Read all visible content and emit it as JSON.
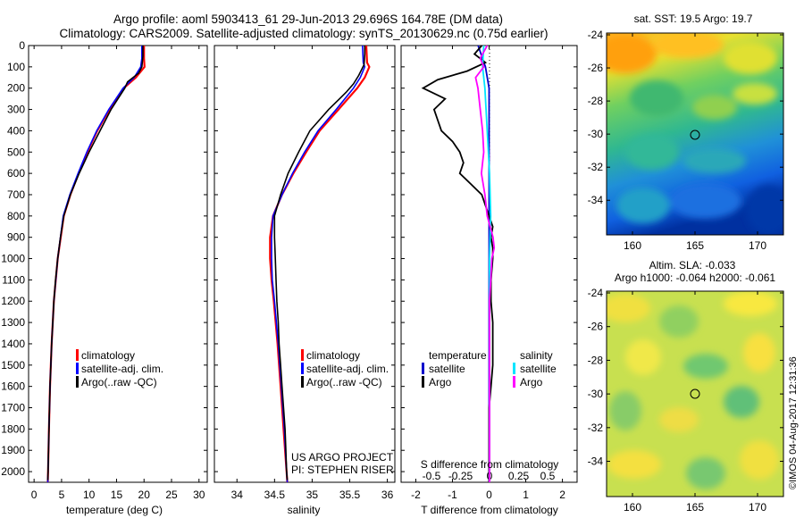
{
  "header": {
    "line1": "Argo profile: aoml 5903413_61 29-Jun-2013 29.696S 164.78E (DM data)",
    "line2": "Climatology: CARS2009. Satellite-adjusted climatology: synTS_20130629.nc (0.75d earlier)"
  },
  "colors": {
    "climatology": "#ff0000",
    "satellite": "#0000ff",
    "argo": "#000000",
    "sat_temp_diff": "#0000cc",
    "sat_sal_diff": "#00e5ff",
    "argo_sal_diff": "#ff00ff"
  },
  "chart_data": [
    {
      "type": "line",
      "panel": "temperature",
      "xlabel": "temperature (deg C)",
      "ylim": [
        2050,
        0
      ],
      "xlim": [
        -1,
        31.5
      ],
      "yticks": [
        0,
        100,
        200,
        300,
        400,
        500,
        600,
        700,
        800,
        900,
        1000,
        1100,
        1200,
        1300,
        1400,
        1500,
        1600,
        1700,
        1800,
        1900,
        2000
      ],
      "xticks": [
        0,
        5,
        10,
        15,
        20,
        25,
        30
      ],
      "legend": [
        "climatology",
        "satellite-adj. clim.",
        "Argo(..raw -QC)"
      ],
      "series": [
        {
          "name": "climatology",
          "depth": [
            0,
            60,
            100,
            150,
            200,
            300,
            400,
            500,
            600,
            700,
            800,
            1000,
            1200,
            1400,
            1600,
            1800,
            2000,
            2050
          ],
          "values": [
            20.0,
            20.0,
            20.1,
            18.5,
            16.3,
            13.7,
            11.5,
            9.7,
            8.1,
            6.6,
            5.4,
            4.3,
            3.6,
            3.2,
            2.9,
            2.7,
            2.55,
            2.5
          ]
        },
        {
          "name": "satellite-adj. clim.",
          "depth": [
            0,
            60,
            100,
            150,
            200,
            300,
            400,
            500,
            600,
            700,
            800,
            1000,
            1200,
            1400,
            1600,
            1800,
            2000,
            2050
          ],
          "values": [
            19.6,
            19.6,
            19.4,
            18.2,
            16.2,
            13.6,
            11.4,
            9.6,
            8.0,
            6.5,
            5.3,
            4.3,
            3.6,
            3.2,
            2.9,
            2.7,
            2.55,
            2.5
          ]
        },
        {
          "name": "Argo(..raw -QC)",
          "depth": [
            0,
            50,
            100,
            130,
            170,
            200,
            300,
            400,
            500,
            600,
            700,
            800,
            900,
            1000,
            1100,
            1200,
            1300,
            1400,
            1500,
            1600,
            1700,
            1800,
            1900,
            2000,
            2040
          ],
          "values": [
            19.8,
            19.8,
            19.6,
            19.0,
            17.0,
            16.5,
            14.0,
            12.0,
            10.0,
            8.2,
            6.6,
            5.4,
            4.8,
            4.3,
            3.9,
            3.6,
            3.4,
            3.2,
            3.05,
            2.9,
            2.8,
            2.7,
            2.62,
            2.55,
            2.5
          ]
        }
      ]
    },
    {
      "type": "line",
      "panel": "salinity",
      "xlabel": "salinity",
      "ylim": [
        2050,
        0
      ],
      "xlim": [
        33.7,
        36.1
      ],
      "xticks": [
        34,
        34.5,
        35,
        35.5,
        36
      ],
      "legend": [
        "climatology",
        "satellite-adj. clim.",
        "Argo(..raw -QC)"
      ],
      "annotation": [
        "US ARGO PROJECT",
        "PI: STEPHEN RISER"
      ],
      "series": [
        {
          "name": "climatology",
          "depth": [
            0,
            80,
            100,
            150,
            200,
            300,
            400,
            500,
            600,
            700,
            800,
            900,
            1000,
            1100,
            1200,
            1400,
            1600,
            1800,
            2000,
            2050
          ],
          "values": [
            35.72,
            35.73,
            35.76,
            35.7,
            35.6,
            35.35,
            35.1,
            34.92,
            34.75,
            34.6,
            34.48,
            34.44,
            34.44,
            34.46,
            34.49,
            34.54,
            34.58,
            34.62,
            34.66,
            34.67
          ]
        },
        {
          "name": "satellite-adj. clim.",
          "depth": [
            0,
            80,
            100,
            150,
            200,
            300,
            400,
            500,
            600,
            700,
            800,
            900,
            1000,
            1100,
            1200,
            1400,
            1600,
            1800,
            2000,
            2050
          ],
          "values": [
            35.67,
            35.68,
            35.7,
            35.64,
            35.55,
            35.32,
            35.08,
            34.9,
            34.74,
            34.6,
            34.48,
            34.46,
            34.46,
            34.47,
            34.5,
            34.55,
            34.59,
            34.63,
            34.66,
            34.67
          ]
        },
        {
          "name": "Argo(..raw -QC)",
          "depth": [
            0,
            40,
            90,
            140,
            180,
            220,
            300,
            400,
            500,
            600,
            700,
            800,
            900,
            1000,
            1100,
            1200,
            1300,
            1400,
            1500,
            1600,
            1700,
            1800,
            1900,
            2000,
            2040
          ],
          "values": [
            35.7,
            35.7,
            35.69,
            35.62,
            35.55,
            35.45,
            35.22,
            34.97,
            34.82,
            34.68,
            34.58,
            34.5,
            34.5,
            34.51,
            34.52,
            34.53,
            34.55,
            34.56,
            34.58,
            34.6,
            34.62,
            34.64,
            34.65,
            34.66,
            34.67
          ]
        }
      ]
    },
    {
      "type": "line",
      "panel": "difference",
      "xlabel": "T difference from climatology",
      "xlabel2": "S difference from climatology",
      "xlim": [
        -2.4,
        2.4
      ],
      "xticks": [
        -2,
        -1,
        0,
        1,
        2
      ],
      "sticks": [
        "-0.5",
        "-0.25",
        "0",
        "0.25",
        "0.5"
      ],
      "legend_headers": [
        "temperature",
        "salinity"
      ],
      "legend": [
        "satellite",
        "Argo",
        "satellite",
        "Argo"
      ],
      "series": [
        {
          "name": "satellite",
          "quantity": "temperature",
          "depth": [
            0,
            100,
            200,
            400,
            800,
            1400,
            2050
          ],
          "values": [
            -0.3,
            -0.1,
            0,
            0,
            0,
            0,
            0
          ]
        },
        {
          "name": "Argo",
          "quantity": "temperature",
          "depth": [
            0,
            40,
            80,
            120,
            160,
            200,
            250,
            300,
            350,
            400,
            450,
            500,
            550,
            600,
            650,
            700,
            750,
            800,
            850,
            900,
            950,
            1000,
            1100,
            1200,
            1300,
            1400,
            1500,
            1600,
            1700,
            1800,
            1900,
            2000,
            2050
          ],
          "values": [
            -0.2,
            -0.4,
            -0.1,
            -0.6,
            -1.4,
            -1.8,
            -1.2,
            -1.5,
            -1.4,
            -1.3,
            -1.0,
            -0.8,
            -0.7,
            -0.8,
            -0.5,
            -0.2,
            -0.1,
            0,
            0.1,
            0.05,
            0.1,
            0.1,
            0.05,
            0.05,
            0.1,
            0.1,
            0.1,
            0.05,
            0,
            0,
            0,
            0,
            0
          ]
        },
        {
          "name": "satellite",
          "quantity": "salinity",
          "depth": [
            0,
            100,
            200,
            400,
            600,
            800,
            1000,
            1400,
            2050
          ],
          "values": [
            -0.05,
            -0.06,
            -0.04,
            -0.02,
            0,
            0.01,
            0,
            0,
            0
          ]
        },
        {
          "name": "Argo",
          "quantity": "salinity",
          "depth": [
            0,
            60,
            100,
            150,
            200,
            300,
            400,
            500,
            600,
            700,
            800,
            900,
            950,
            1000,
            1100,
            1200,
            1400,
            1600,
            2050
          ],
          "values": [
            -0.02,
            -0.08,
            -0.05,
            -0.12,
            -0.1,
            -0.08,
            -0.06,
            -0.05,
            -0.07,
            -0.04,
            -0.02,
            0.03,
            0.04,
            0.02,
            0.01,
            0,
            0,
            0,
            0
          ]
        }
      ]
    }
  ],
  "maps": [
    {
      "title": "sat. SST: 19.5 Argo: 19.7",
      "yticks": [
        "-24",
        "-26",
        "-28",
        "-30",
        "-32",
        "-34"
      ],
      "xticks": [
        "160",
        "165",
        "170"
      ]
    },
    {
      "title": "Altim. SLA: -0.033",
      "title2": "Argo h1000: -0.064 h2000: -0.061",
      "yticks": [
        "-24",
        "-26",
        "-28",
        "-30",
        "-32",
        "-34"
      ],
      "xticks": [
        "160",
        "165",
        "170"
      ]
    }
  ],
  "credit": "©IMOS 04-Aug-2017 12:31:36"
}
